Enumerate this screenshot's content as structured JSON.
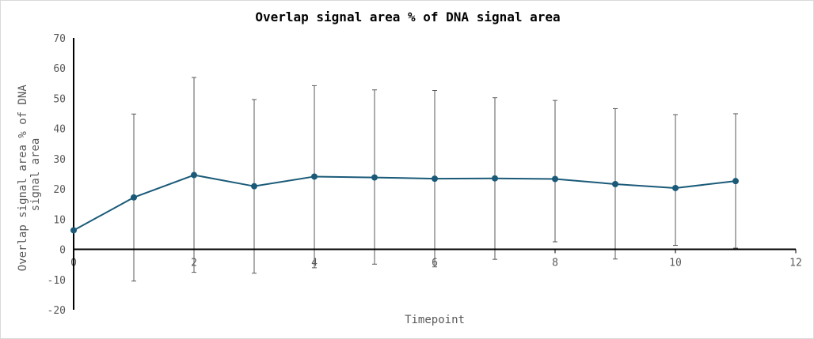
{
  "chart_data": {
    "type": "line",
    "title": "Overlap signal area % of DNA signal area",
    "xlabel": "Timepoint",
    "ylabel": "Overlap signal area % of DNA signal area",
    "xlim": [
      0,
      12
    ],
    "ylim": [
      -20,
      70
    ],
    "xticks": [
      0,
      2,
      4,
      6,
      8,
      10,
      12
    ],
    "yticks": [
      -20,
      -10,
      0,
      10,
      20,
      30,
      40,
      50,
      60,
      70
    ],
    "grid": false,
    "legend": "none",
    "series": [
      {
        "x": [
          0,
          1,
          2,
          3,
          4,
          5,
          6,
          7,
          8,
          9,
          10,
          11
        ],
        "y": [
          6.3,
          17.2,
          24.6,
          20.9,
          24.1,
          23.8,
          23.4,
          23.5,
          23.3,
          21.6,
          20.3,
          22.6
        ],
        "error_upper": [
          null,
          44.8,
          56.9,
          49.6,
          54.2,
          52.8,
          52.6,
          50.2,
          49.3,
          46.6,
          44.6,
          44.9
        ],
        "error_lower": [
          null,
          -10.5,
          -7.6,
          -7.9,
          -6.1,
          -4.9,
          -5.8,
          -3.3,
          2.5,
          -3.2,
          1.3,
          0.4
        ],
        "color": "#1a5a78"
      }
    ],
    "error_bar_color": "#595959",
    "axis_color": "#000000",
    "text_color": "#595959"
  }
}
